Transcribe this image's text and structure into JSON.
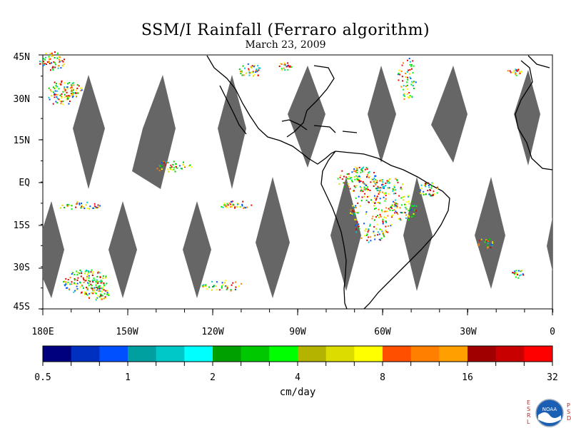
{
  "title": "SSM/I Rainfall (Ferraro algorithm)",
  "subtitle": "March 23, 2009",
  "map": {
    "y_ticks": [
      "45N",
      "30N",
      "15N",
      "EQ",
      "15S",
      "30S",
      "45S"
    ],
    "x_ticks": [
      "180E",
      "150W",
      "120W",
      "90W",
      "60W",
      "30W",
      "0"
    ],
    "swath_color": "#666666",
    "land_outline_color": "#000000"
  },
  "colorbar": {
    "colors": [
      "#00007f",
      "#0030c0",
      "#0050ff",
      "#00a0a0",
      "#00c8c8",
      "#00ffff",
      "#00a000",
      "#00c800",
      "#00ff00",
      "#b4b400",
      "#dcdc00",
      "#ffff00",
      "#ff5000",
      "#ff7f00",
      "#ffa000",
      "#a00000",
      "#c80000",
      "#ff0000"
    ],
    "labels": [
      "0.5",
      "1",
      "2",
      "4",
      "8",
      "16",
      "32"
    ],
    "units": "cm/day"
  },
  "logo": {
    "left_letters": "ESRL",
    "right_letters": "PSD",
    "name": "NOAA"
  }
}
